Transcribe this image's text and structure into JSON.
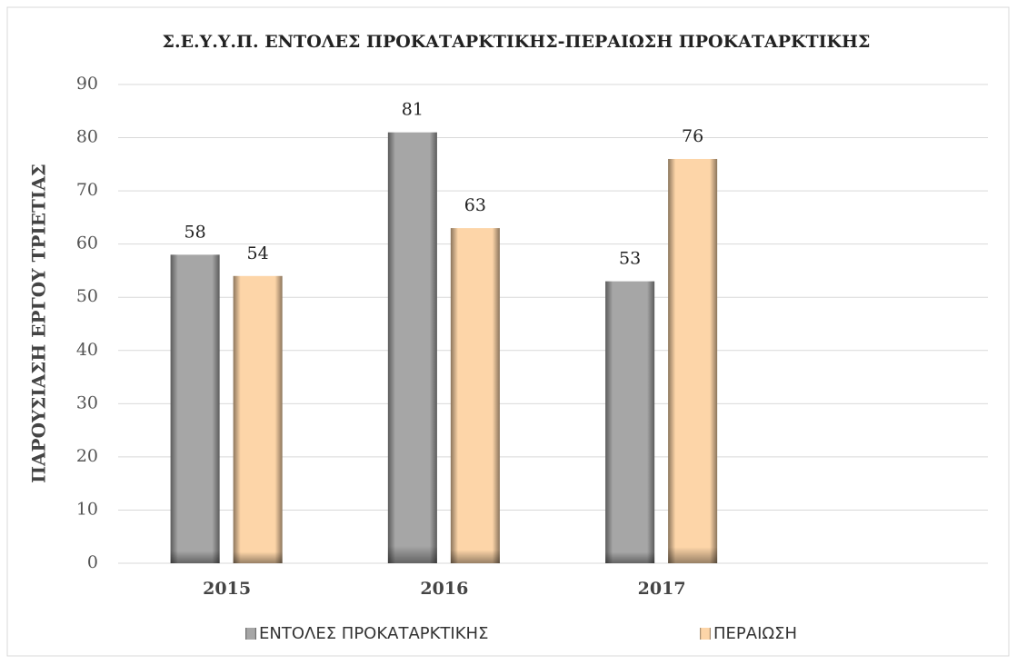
{
  "chart_data": {
    "type": "bar",
    "title": "Σ.Ε.Υ.Υ.Π. ΕΝΤΟΛΕΣ ΠΡΟΚΑΤΑΡΚΤΙΚΗΣ-ΠΕΡΑΙΩΣΗ ΠΡΟΚΑΤΑΡΚΤΙΚΗΣ",
    "y_label": "ΠΑΡΟΥΣΙΑΣΗ ΕΡΓΟΥ ΤΡΙΕΤΙΑΣ",
    "categories": [
      "2015",
      "2016",
      "2017",
      null
    ],
    "series": [
      {
        "name": "ΕΝΤΟΛΕΣ ΠΡΟΚΑΤΑΡΚΤΙΚΗΣ",
        "color": "#a6a6a6",
        "values": [
          58,
          81,
          53,
          null
        ]
      },
      {
        "name": "ΠΕΡΑΙΩΣΗ",
        "color": "#fdd5a8",
        "values": [
          54,
          63,
          76,
          null
        ]
      }
    ],
    "ylim": [
      0,
      90
    ],
    "yticks": [
      0,
      10,
      20,
      30,
      40,
      50,
      60,
      70,
      80,
      90
    ],
    "grid": true,
    "legend": "bottom"
  }
}
